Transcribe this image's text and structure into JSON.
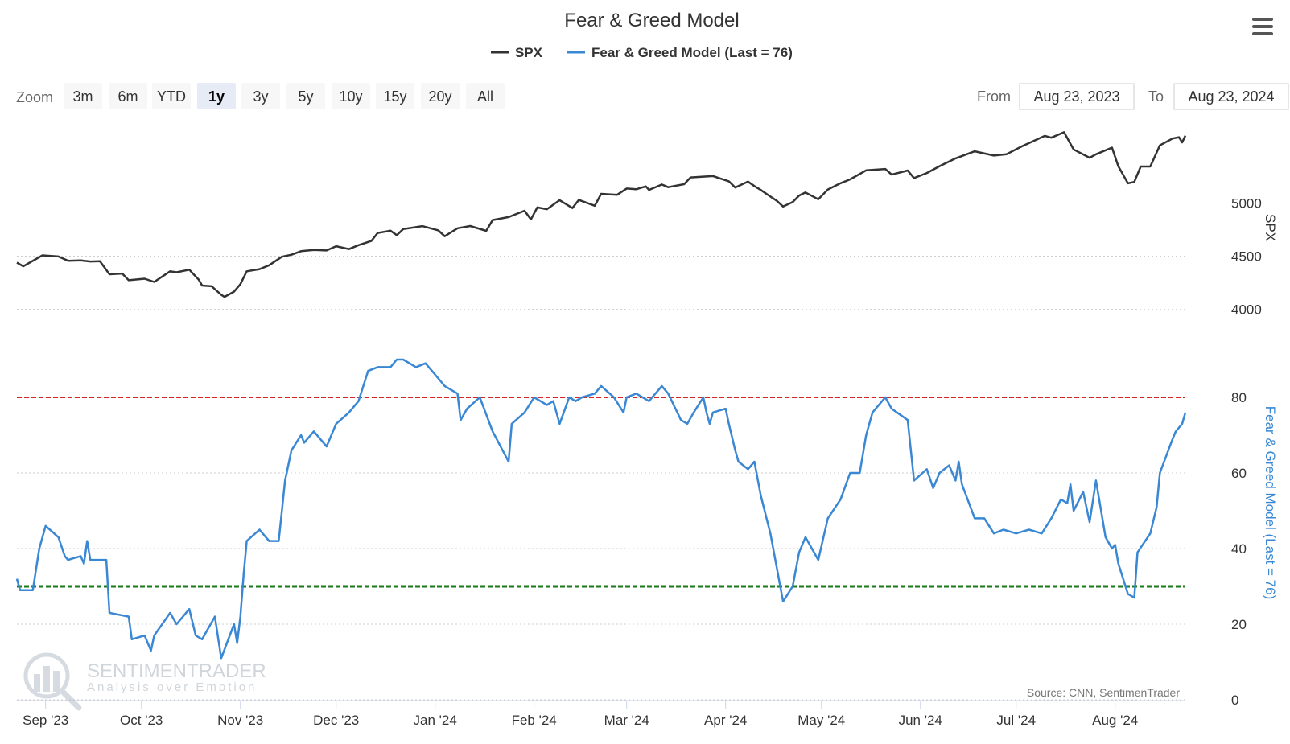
{
  "menu_icon": "hamburger-menu-icon",
  "zoom": {
    "label": "Zoom",
    "buttons": [
      "3m",
      "6m",
      "YTD",
      "1y",
      "3y",
      "5y",
      "10y",
      "15y",
      "20y",
      "All"
    ],
    "selected": "1y"
  },
  "range": {
    "from_label": "From",
    "from_value": "Aug 23, 2023",
    "to_label": "To",
    "to_value": "Aug 23, 2024"
  },
  "watermark": {
    "brand": "SENTIMENTRADER",
    "tagline": "Analysis over Emotion"
  },
  "source": "Source: CNN, SentimenTrader",
  "chart_data": {
    "type": "line",
    "title": "Fear & Greed Model",
    "legend": [
      {
        "name": "SPX",
        "color": "#333333"
      },
      {
        "name": "Fear & Greed Model (Last = 76)",
        "color": "#3a87d4"
      }
    ],
    "legend_position": "top-center",
    "x_axis": {
      "range": [
        "2023-08-23",
        "2024-08-23"
      ],
      "ticks": [
        {
          "date": "2023-09-01",
          "label": "Sep '23"
        },
        {
          "date": "2023-10-01",
          "label": "Oct '23"
        },
        {
          "date": "2023-11-01",
          "label": "Nov '23"
        },
        {
          "date": "2023-12-01",
          "label": "Dec '23"
        },
        {
          "date": "2024-01-01",
          "label": "Jan '24"
        },
        {
          "date": "2024-02-01",
          "label": "Feb '24"
        },
        {
          "date": "2024-03-01",
          "label": "Mar '24"
        },
        {
          "date": "2024-04-01",
          "label": "Apr '24"
        },
        {
          "date": "2024-05-01",
          "label": "May '24"
        },
        {
          "date": "2024-06-01",
          "label": "Jun '24"
        },
        {
          "date": "2024-07-01",
          "label": "Jul '24"
        },
        {
          "date": "2024-08-01",
          "label": "Aug '24"
        }
      ]
    },
    "panels": [
      {
        "series_name": "SPX",
        "ylabel": "SPX",
        "ylim": [
          3800,
          5700
        ],
        "yticks": [
          4000,
          4500,
          5000
        ],
        "grid": true,
        "color": "#333333",
        "points": [
          [
            "2023-08-23",
            4440
          ],
          [
            "2023-08-25",
            4405
          ],
          [
            "2023-08-31",
            4508
          ],
          [
            "2023-09-05",
            4497
          ],
          [
            "2023-09-08",
            4457
          ],
          [
            "2023-09-12",
            4461
          ],
          [
            "2023-09-15",
            4450
          ],
          [
            "2023-09-18",
            4453
          ],
          [
            "2023-09-21",
            4330
          ],
          [
            "2023-09-25",
            4337
          ],
          [
            "2023-09-27",
            4274
          ],
          [
            "2023-10-02",
            4288
          ],
          [
            "2023-10-05",
            4258
          ],
          [
            "2023-10-10",
            4358
          ],
          [
            "2023-10-12",
            4349
          ],
          [
            "2023-10-16",
            4373
          ],
          [
            "2023-10-19",
            4278
          ],
          [
            "2023-10-20",
            4224
          ],
          [
            "2023-10-23",
            4217
          ],
          [
            "2023-10-26",
            4137
          ],
          [
            "2023-10-27",
            4117
          ],
          [
            "2023-10-30",
            4166
          ],
          [
            "2023-11-01",
            4237
          ],
          [
            "2023-11-03",
            4358
          ],
          [
            "2023-11-07",
            4378
          ],
          [
            "2023-11-10",
            4415
          ],
          [
            "2023-11-14",
            4495
          ],
          [
            "2023-11-17",
            4514
          ],
          [
            "2023-11-20",
            4547
          ],
          [
            "2023-11-24",
            4559
          ],
          [
            "2023-11-28",
            4554
          ],
          [
            "2023-12-01",
            4594
          ],
          [
            "2023-12-05",
            4567
          ],
          [
            "2023-12-08",
            4604
          ],
          [
            "2023-12-12",
            4643
          ],
          [
            "2023-12-14",
            4719
          ],
          [
            "2023-12-18",
            4740
          ],
          [
            "2023-12-20",
            4698
          ],
          [
            "2023-12-22",
            4755
          ],
          [
            "2023-12-28",
            4783
          ],
          [
            "2024-01-02",
            4743
          ],
          [
            "2024-01-04",
            4688
          ],
          [
            "2024-01-08",
            4763
          ],
          [
            "2024-01-12",
            4784
          ],
          [
            "2024-01-17",
            4739
          ],
          [
            "2024-01-19",
            4840
          ],
          [
            "2024-01-24",
            4868
          ],
          [
            "2024-01-29",
            4928
          ],
          [
            "2024-01-31",
            4846
          ],
          [
            "2024-02-02",
            4959
          ],
          [
            "2024-02-05",
            4942
          ],
          [
            "2024-02-09",
            5027
          ],
          [
            "2024-02-13",
            4953
          ],
          [
            "2024-02-15",
            5029
          ],
          [
            "2024-02-20",
            4975
          ],
          [
            "2024-02-22",
            5087
          ],
          [
            "2024-02-27",
            5078
          ],
          [
            "2024-03-01",
            5137
          ],
          [
            "2024-03-04",
            5130
          ],
          [
            "2024-03-07",
            5157
          ],
          [
            "2024-03-08",
            5124
          ],
          [
            "2024-03-12",
            5175
          ],
          [
            "2024-03-14",
            5150
          ],
          [
            "2024-03-19",
            5178
          ],
          [
            "2024-03-21",
            5241
          ],
          [
            "2024-03-28",
            5254
          ],
          [
            "2024-04-02",
            5205
          ],
          [
            "2024-04-04",
            5147
          ],
          [
            "2024-04-08",
            5202
          ],
          [
            "2024-04-10",
            5160
          ],
          [
            "2024-04-12",
            5123
          ],
          [
            "2024-04-15",
            5061
          ],
          [
            "2024-04-17",
            5022
          ],
          [
            "2024-04-19",
            4967
          ],
          [
            "2024-04-22",
            5010
          ],
          [
            "2024-04-24",
            5071
          ],
          [
            "2024-04-26",
            5100
          ],
          [
            "2024-04-30",
            5035
          ],
          [
            "2024-05-03",
            5128
          ],
          [
            "2024-05-07",
            5187
          ],
          [
            "2024-05-10",
            5223
          ],
          [
            "2024-05-15",
            5308
          ],
          [
            "2024-05-21",
            5321
          ],
          [
            "2024-05-23",
            5268
          ],
          [
            "2024-05-28",
            5306
          ],
          [
            "2024-05-30",
            5235
          ],
          [
            "2024-06-03",
            5283
          ],
          [
            "2024-06-07",
            5347
          ],
          [
            "2024-06-12",
            5421
          ],
          [
            "2024-06-18",
            5487
          ],
          [
            "2024-06-24",
            5447
          ],
          [
            "2024-06-28",
            5460
          ],
          [
            "2024-07-03",
            5537
          ],
          [
            "2024-07-10",
            5633
          ],
          [
            "2024-07-12",
            5615
          ],
          [
            "2024-07-16",
            5667
          ],
          [
            "2024-07-19",
            5505
          ],
          [
            "2024-07-24",
            5427
          ],
          [
            "2024-07-26",
            5459
          ],
          [
            "2024-07-31",
            5522
          ],
          [
            "2024-08-02",
            5346
          ],
          [
            "2024-08-05",
            5186
          ],
          [
            "2024-08-07",
            5199
          ],
          [
            "2024-08-09",
            5344
          ],
          [
            "2024-08-12",
            5344
          ],
          [
            "2024-08-15",
            5543
          ],
          [
            "2024-08-19",
            5608
          ],
          [
            "2024-08-21",
            5620
          ],
          [
            "2024-08-22",
            5571
          ],
          [
            "2024-08-23",
            5635
          ]
        ]
      },
      {
        "series_name": "Fear & Greed Model (Last = 76)",
        "ylabel": "Fear & Greed Model (Last = 76)",
        "ylim": [
          0,
          90
        ],
        "yticks": [
          0,
          20,
          40,
          60,
          80
        ],
        "grid": true,
        "color": "#3a87d4",
        "reference_lines": [
          {
            "value": 80,
            "color": "#d62728",
            "style": "dashed"
          },
          {
            "value": 30,
            "color": "#1a7a1a",
            "style": "dashed"
          }
        ],
        "points": [
          [
            "2023-08-23",
            32
          ],
          [
            "2023-08-24",
            29
          ],
          [
            "2023-08-28",
            29
          ],
          [
            "2023-08-30",
            40
          ],
          [
            "2023-09-01",
            46
          ],
          [
            "2023-09-05",
            43
          ],
          [
            "2023-09-07",
            38
          ],
          [
            "2023-09-08",
            37
          ],
          [
            "2023-09-12",
            38
          ],
          [
            "2023-09-13",
            36
          ],
          [
            "2023-09-14",
            42
          ],
          [
            "2023-09-15",
            37
          ],
          [
            "2023-09-20",
            37
          ],
          [
            "2023-09-21",
            23
          ],
          [
            "2023-09-27",
            22
          ],
          [
            "2023-09-28",
            16
          ],
          [
            "2023-10-02",
            17
          ],
          [
            "2023-10-04",
            13
          ],
          [
            "2023-10-05",
            17
          ],
          [
            "2023-10-10",
            23
          ],
          [
            "2023-10-12",
            20
          ],
          [
            "2023-10-16",
            24
          ],
          [
            "2023-10-18",
            17
          ],
          [
            "2023-10-20",
            16
          ],
          [
            "2023-10-24",
            22
          ],
          [
            "2023-10-26",
            11
          ],
          [
            "2023-10-30",
            20
          ],
          [
            "2023-10-31",
            15
          ],
          [
            "2023-11-01",
            22
          ],
          [
            "2023-11-02",
            33
          ],
          [
            "2023-11-03",
            42
          ],
          [
            "2023-11-07",
            45
          ],
          [
            "2023-11-09",
            43
          ],
          [
            "2023-11-10",
            42
          ],
          [
            "2023-11-13",
            42
          ],
          [
            "2023-11-14",
            50
          ],
          [
            "2023-11-15",
            58
          ],
          [
            "2023-11-17",
            66
          ],
          [
            "2023-11-20",
            70
          ],
          [
            "2023-11-21",
            68
          ],
          [
            "2023-11-24",
            71
          ],
          [
            "2023-11-28",
            67
          ],
          [
            "2023-12-01",
            73
          ],
          [
            "2023-12-05",
            76
          ],
          [
            "2023-12-08",
            79
          ],
          [
            "2023-12-11",
            87
          ],
          [
            "2023-12-14",
            88
          ],
          [
            "2023-12-18",
            88
          ],
          [
            "2023-12-20",
            90
          ],
          [
            "2023-12-22",
            90
          ],
          [
            "2023-12-26",
            88
          ],
          [
            "2023-12-29",
            89
          ],
          [
            "2024-01-02",
            85
          ],
          [
            "2024-01-04",
            83
          ],
          [
            "2024-01-08",
            81
          ],
          [
            "2024-01-09",
            74
          ],
          [
            "2024-01-11",
            77
          ],
          [
            "2024-01-15",
            80
          ],
          [
            "2024-01-19",
            71
          ],
          [
            "2024-01-24",
            63
          ],
          [
            "2024-01-25",
            73
          ],
          [
            "2024-01-29",
            76
          ],
          [
            "2024-02-01",
            80
          ],
          [
            "2024-02-05",
            78
          ],
          [
            "2024-02-07",
            79
          ],
          [
            "2024-02-09",
            73
          ],
          [
            "2024-02-12",
            80
          ],
          [
            "2024-02-14",
            79
          ],
          [
            "2024-02-16",
            80
          ],
          [
            "2024-02-20",
            81
          ],
          [
            "2024-02-22",
            83
          ],
          [
            "2024-02-26",
            80
          ],
          [
            "2024-02-29",
            76
          ],
          [
            "2024-03-01",
            80
          ],
          [
            "2024-03-04",
            81
          ],
          [
            "2024-03-08",
            79
          ],
          [
            "2024-03-12",
            83
          ],
          [
            "2024-03-14",
            81
          ],
          [
            "2024-03-18",
            74
          ],
          [
            "2024-03-20",
            73
          ],
          [
            "2024-03-22",
            76
          ],
          [
            "2024-03-25",
            80
          ],
          [
            "2024-03-26",
            76
          ],
          [
            "2024-03-27",
            73
          ],
          [
            "2024-03-28",
            76
          ],
          [
            "2024-04-01",
            77
          ],
          [
            "2024-04-02",
            73
          ],
          [
            "2024-04-04",
            66
          ],
          [
            "2024-04-05",
            63
          ],
          [
            "2024-04-08",
            61
          ],
          [
            "2024-04-10",
            63
          ],
          [
            "2024-04-12",
            54
          ],
          [
            "2024-04-15",
            44
          ],
          [
            "2024-04-17",
            35
          ],
          [
            "2024-04-19",
            26
          ],
          [
            "2024-04-22",
            30
          ],
          [
            "2024-04-24",
            39
          ],
          [
            "2024-04-26",
            43
          ],
          [
            "2024-04-30",
            37
          ],
          [
            "2024-05-03",
            48
          ],
          [
            "2024-05-07",
            53
          ],
          [
            "2024-05-10",
            60
          ],
          [
            "2024-05-13",
            60
          ],
          [
            "2024-05-15",
            70
          ],
          [
            "2024-05-17",
            76
          ],
          [
            "2024-05-21",
            80
          ],
          [
            "2024-05-23",
            77
          ],
          [
            "2024-05-28",
            74
          ],
          [
            "2024-05-30",
            58
          ],
          [
            "2024-06-03",
            61
          ],
          [
            "2024-06-05",
            56
          ],
          [
            "2024-06-07",
            60
          ],
          [
            "2024-06-10",
            62
          ],
          [
            "2024-06-12",
            58
          ],
          [
            "2024-06-13",
            63
          ],
          [
            "2024-06-14",
            57
          ],
          [
            "2024-06-18",
            48
          ],
          [
            "2024-06-21",
            48
          ],
          [
            "2024-06-24",
            44
          ],
          [
            "2024-06-27",
            45
          ],
          [
            "2024-07-01",
            44
          ],
          [
            "2024-07-05",
            45
          ],
          [
            "2024-07-09",
            44
          ],
          [
            "2024-07-12",
            48
          ],
          [
            "2024-07-15",
            53
          ],
          [
            "2024-07-17",
            52
          ],
          [
            "2024-07-18",
            57
          ],
          [
            "2024-07-19",
            50
          ],
          [
            "2024-07-22",
            55
          ],
          [
            "2024-07-24",
            47
          ],
          [
            "2024-07-26",
            58
          ],
          [
            "2024-07-29",
            43
          ],
          [
            "2024-07-31",
            40
          ],
          [
            "2024-08-01",
            41
          ],
          [
            "2024-08-02",
            36
          ],
          [
            "2024-08-05",
            28
          ],
          [
            "2024-08-07",
            27
          ],
          [
            "2024-08-08",
            39
          ],
          [
            "2024-08-12",
            44
          ],
          [
            "2024-08-14",
            51
          ],
          [
            "2024-08-15",
            60
          ],
          [
            "2024-08-19",
            69
          ],
          [
            "2024-08-20",
            71
          ],
          [
            "2024-08-22",
            73
          ],
          [
            "2024-08-23",
            76
          ]
        ]
      }
    ]
  }
}
